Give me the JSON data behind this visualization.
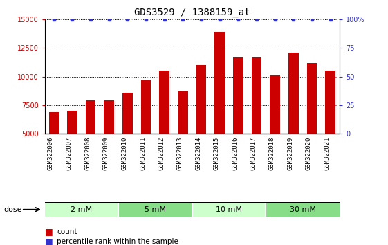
{
  "title": "GDS3529 / 1388159_at",
  "samples": [
    "GSM322006",
    "GSM322007",
    "GSM322008",
    "GSM322009",
    "GSM322010",
    "GSM322011",
    "GSM322012",
    "GSM322013",
    "GSM322014",
    "GSM322015",
    "GSM322016",
    "GSM322017",
    "GSM322018",
    "GSM322019",
    "GSM322020",
    "GSM322021"
  ],
  "counts": [
    6900,
    7000,
    7900,
    7900,
    8550,
    9700,
    10500,
    8700,
    11000,
    13900,
    11700,
    11650,
    10100,
    12100,
    11200,
    10500
  ],
  "percentile": [
    100,
    100,
    100,
    100,
    100,
    100,
    100,
    100,
    100,
    100,
    100,
    100,
    100,
    100,
    100,
    100
  ],
  "bar_color": "#cc0000",
  "dot_color": "#3333cc",
  "ylim_left": [
    5000,
    15000
  ],
  "ylim_right": [
    0,
    100
  ],
  "yticks_left": [
    5000,
    7500,
    10000,
    12500,
    15000
  ],
  "yticks_right": [
    0,
    25,
    50,
    75,
    100
  ],
  "dose_groups": [
    {
      "label": "2 mM",
      "start": 0,
      "end": 4,
      "color": "#ccffcc"
    },
    {
      "label": "5 mM",
      "start": 4,
      "end": 8,
      "color": "#88dd88"
    },
    {
      "label": "10 mM",
      "start": 8,
      "end": 12,
      "color": "#ccffcc"
    },
    {
      "label": "30 mM",
      "start": 12,
      "end": 16,
      "color": "#88dd88"
    }
  ],
  "dose_label": "dose",
  "legend_count_label": "count",
  "legend_pct_label": "percentile rank within the sample",
  "xlabel_bg": "#c0c0c0",
  "plot_bg": "#ffffff",
  "bar_width": 0.55,
  "tick_fontsize": 7,
  "sample_fontsize": 6.5,
  "title_fontsize": 10,
  "dose_fontsize": 8,
  "legend_fontsize": 7.5
}
